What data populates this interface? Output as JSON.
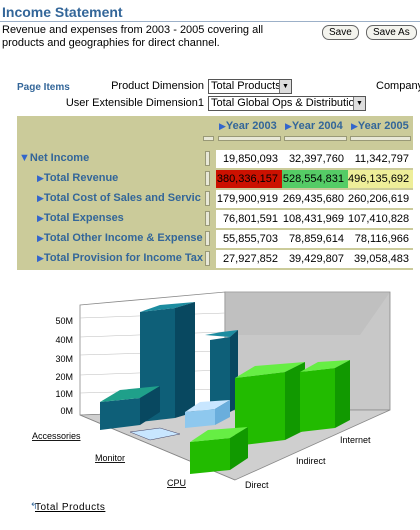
{
  "page": {
    "title": "Income Statement",
    "description": "Revenue and expenses from 2003 - 2005 covering all products and geographies for direct channel.",
    "save_label": "Save",
    "save_as_label": "Save As"
  },
  "page_items": {
    "label": "Page Items",
    "product_dimension_label": "Product Dimension",
    "product_dimension_value": "Total Products",
    "user_dimension_label": "User Extensible Dimension1",
    "user_dimension_value": "Total Global Ops & Distribution",
    "company_label": "Company"
  },
  "grid": {
    "columns": [
      "Year 2003",
      "Year 2004",
      "Year 2005"
    ],
    "rows": [
      {
        "label": "Net Income",
        "values": [
          "19,850,093",
          "32,397,760",
          "11,342,797"
        ]
      },
      {
        "label": "Total Revenue",
        "values": [
          "380,336,157",
          "528,554,831",
          "496,135,692"
        ]
      },
      {
        "label": "Total Cost of Sales and Servic",
        "values": [
          "179,900,919",
          "269,435,680",
          "260,206,619"
        ]
      },
      {
        "label": "Total Expenses",
        "values": [
          "76,801,591",
          "108,431,969",
          "107,410,828"
        ]
      },
      {
        "label": "Total Other Income & Expense",
        "values": [
          "55,855,703",
          "78,859,614",
          "78,116,966"
        ]
      },
      {
        "label": "Total Provision for Income Tax",
        "values": [
          "27,927,852",
          "39,429,807",
          "39,058,483"
        ]
      }
    ],
    "colors": {
      "red": "#cc1100",
      "green": "#55cc66",
      "yellow": "#eeee99"
    }
  },
  "chart_data": {
    "type": "bar",
    "categories": [
      "Accessories",
      "Monitor",
      "CPU"
    ],
    "series": [
      {
        "name": "Internet",
        "values": [
          10,
          45,
          2
        ]
      },
      {
        "name": "Indirect",
        "values": [
          3,
          40,
          5
        ]
      },
      {
        "name": "Direct",
        "values": [
          2,
          30,
          8
        ]
      }
    ],
    "y_ticks": [
      "0M",
      "10M",
      "20M",
      "30M",
      "40M",
      "50M"
    ],
    "ylim": [
      0,
      50
    ],
    "legend_link": "Total Products"
  }
}
